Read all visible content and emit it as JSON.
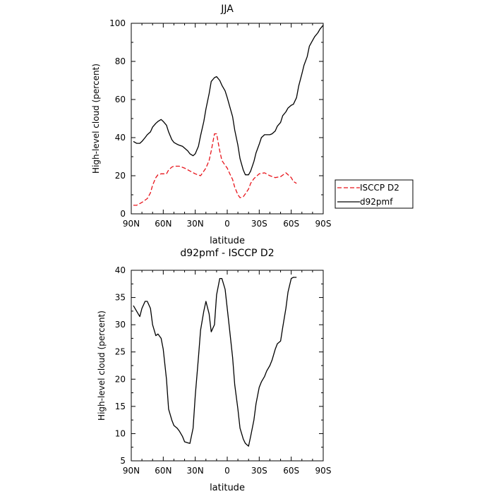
{
  "chart_data": [
    {
      "type": "line",
      "title": "JJA",
      "xlabel": "latitude",
      "ylabel": "High-level cloud (percent)",
      "xlim": [
        90,
        -90
      ],
      "ylim": [
        0,
        100
      ],
      "x_ticks": [
        90,
        60,
        30,
        0,
        -30,
        -60,
        -90
      ],
      "x_tick_labels": [
        "90N",
        "60N",
        "30N",
        "0",
        "30S",
        "60S",
        "90S"
      ],
      "y_ticks": [
        0,
        20,
        40,
        60,
        80,
        100
      ],
      "y_tick_labels": [
        "0",
        "20",
        "40",
        "60",
        "80",
        "100"
      ],
      "legend_position": "outside-right",
      "series": [
        {
          "name": "ISCCP D2",
          "color": "#e8141b",
          "dash": "dashed",
          "x": [
            88,
            85,
            80,
            75,
            72,
            70,
            67,
            65,
            62,
            60,
            57,
            55,
            52,
            50,
            45,
            40,
            35,
            30,
            25,
            20,
            17,
            15,
            12,
            10,
            7,
            5,
            2,
            0,
            -2,
            -5,
            -7,
            -10,
            -12,
            -15,
            -17,
            -20,
            -22,
            -25,
            -30,
            -35,
            -40,
            -45,
            -50,
            -55,
            -60,
            -62,
            -65
          ],
          "y": [
            4.5,
            4.5,
            6,
            8,
            11,
            15,
            19,
            20.5,
            21,
            21,
            21,
            23,
            24.5,
            25,
            25,
            24,
            22.5,
            21,
            20,
            24,
            28,
            33,
            42,
            42,
            33,
            28,
            25.5,
            24,
            21.5,
            18,
            14,
            10,
            8.5,
            9,
            10.5,
            13,
            16,
            18.5,
            21,
            21.5,
            20,
            19,
            19.5,
            21.5,
            19,
            17,
            16
          ]
        },
        {
          "name": "d92pmf",
          "color": "#000000",
          "dash": "solid",
          "x": [
            88,
            85,
            82,
            80,
            77,
            75,
            72,
            70,
            67,
            65,
            62,
            60,
            57,
            55,
            52,
            50,
            47,
            45,
            42,
            40,
            37,
            35,
            32,
            30,
            27,
            25,
            22,
            20,
            17,
            15,
            12,
            10,
            7,
            5,
            2,
            0,
            -2,
            -5,
            -7,
            -10,
            -12,
            -15,
            -17,
            -20,
            -22,
            -25,
            -27,
            -30,
            -32,
            -35,
            -37,
            -40,
            -42,
            -45,
            -47,
            -50,
            -52,
            -55,
            -57,
            -60,
            -62,
            -65,
            -67,
            -70,
            -72,
            -75,
            -77,
            -80,
            -82,
            -85,
            -87,
            -90
          ],
          "y": [
            38,
            37,
            37,
            38,
            40,
            41.5,
            43,
            45.5,
            47.5,
            48.5,
            49.5,
            48.5,
            46.5,
            43,
            39,
            37.5,
            36.5,
            36,
            35.5,
            34.5,
            33,
            31.5,
            30.5,
            31.5,
            35.5,
            41,
            48.5,
            55,
            63,
            69.5,
            71.5,
            72,
            70,
            67.5,
            64.5,
            61,
            57,
            51,
            44,
            36,
            29,
            23,
            20.5,
            20.5,
            22.5,
            27.5,
            32,
            36.5,
            40,
            41.5,
            41.5,
            41.5,
            42,
            43.5,
            46,
            48,
            51.5,
            53.5,
            55.5,
            57,
            57.5,
            61,
            67,
            73.5,
            78,
            82.5,
            88,
            91,
            93,
            95,
            97,
            99
          ]
        }
      ]
    },
    {
      "type": "line",
      "title": "d92pmf - ISCCP D2",
      "xlabel": "latitude",
      "ylabel": "High-level cloud (percent)",
      "xlim": [
        90,
        -90
      ],
      "ylim": [
        5,
        40
      ],
      "x_ticks": [
        90,
        60,
        30,
        0,
        -30,
        -60,
        -90
      ],
      "x_tick_labels": [
        "90N",
        "60N",
        "30N",
        "0",
        "30S",
        "60S",
        "90S"
      ],
      "y_ticks": [
        5,
        10,
        15,
        20,
        25,
        30,
        35,
        40
      ],
      "y_tick_labels": [
        "5",
        "10",
        "15",
        "20",
        "25",
        "30",
        "35",
        "40"
      ],
      "series": [
        {
          "color": "#000000",
          "dash": "solid",
          "x": [
            88,
            85,
            82,
            80,
            77,
            75,
            72,
            70,
            67,
            65,
            62,
            60,
            57,
            55,
            52,
            50,
            47,
            45,
            42,
            40,
            37,
            35,
            32,
            30,
            27,
            25,
            22,
            20,
            17,
            15,
            12,
            10,
            7,
            5,
            2,
            0,
            -2,
            -5,
            -7,
            -10,
            -12,
            -15,
            -17,
            -20,
            -22,
            -25,
            -27,
            -30,
            -32,
            -35,
            -37,
            -40,
            -42,
            -45,
            -47,
            -50,
            -52,
            -55,
            -57,
            -60,
            -62,
            -65
          ],
          "y": [
            33.5,
            32.5,
            31.5,
            33,
            34.3,
            34.3,
            33,
            30,
            28,
            28.3,
            27.5,
            25.5,
            20,
            14.5,
            12.5,
            11.5,
            11,
            10.5,
            9.5,
            8.5,
            8.3,
            8.2,
            11,
            17,
            24,
            29,
            32.5,
            34.3,
            32,
            28.7,
            30,
            35.5,
            38.5,
            38.5,
            36.5,
            33,
            29.5,
            24,
            19,
            14.5,
            11,
            9,
            8.2,
            7.7,
            9.5,
            12.5,
            15.5,
            18.5,
            19.5,
            20.5,
            21.5,
            22.5,
            23.5,
            25.5,
            26.5,
            27,
            29.5,
            33,
            36,
            38.5,
            38.7,
            38.7
          ]
        }
      ]
    }
  ]
}
